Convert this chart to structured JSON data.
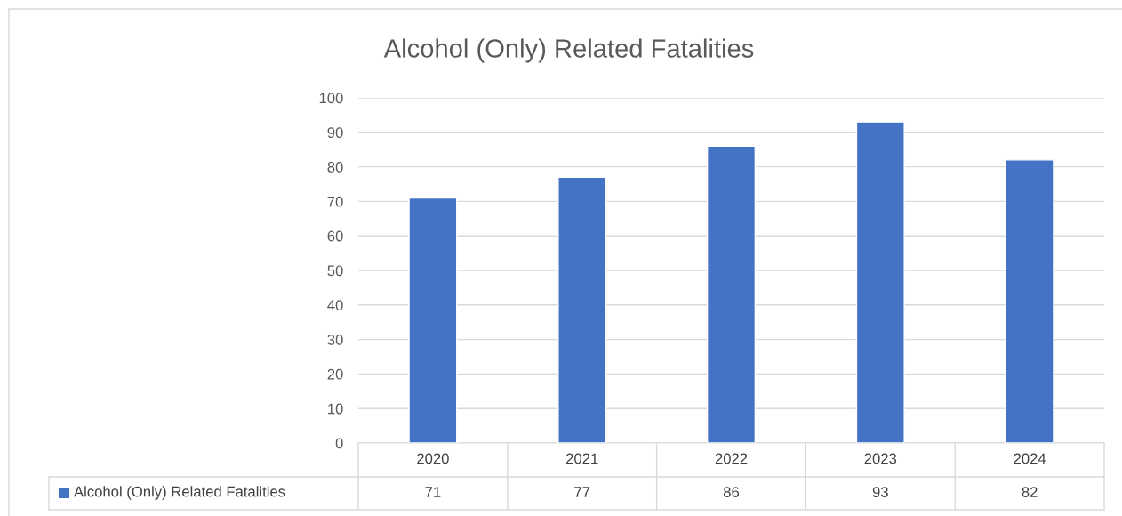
{
  "chart_data": {
    "type": "bar",
    "title": "Alcohol (Only) Related Fatalities",
    "categories": [
      "2020",
      "2021",
      "2022",
      "2023",
      "2024"
    ],
    "series": [
      {
        "name": "Alcohol (Only) Related Fatalities",
        "color": "#4472c4",
        "values": [
          71,
          77,
          86,
          93,
          82
        ]
      }
    ],
    "ylim": [
      0,
      100
    ],
    "yticks": [
      0,
      10,
      20,
      30,
      40,
      50,
      60,
      70,
      80,
      90,
      100
    ],
    "grid": "y",
    "data_labels": true,
    "legend": "bottom"
  }
}
